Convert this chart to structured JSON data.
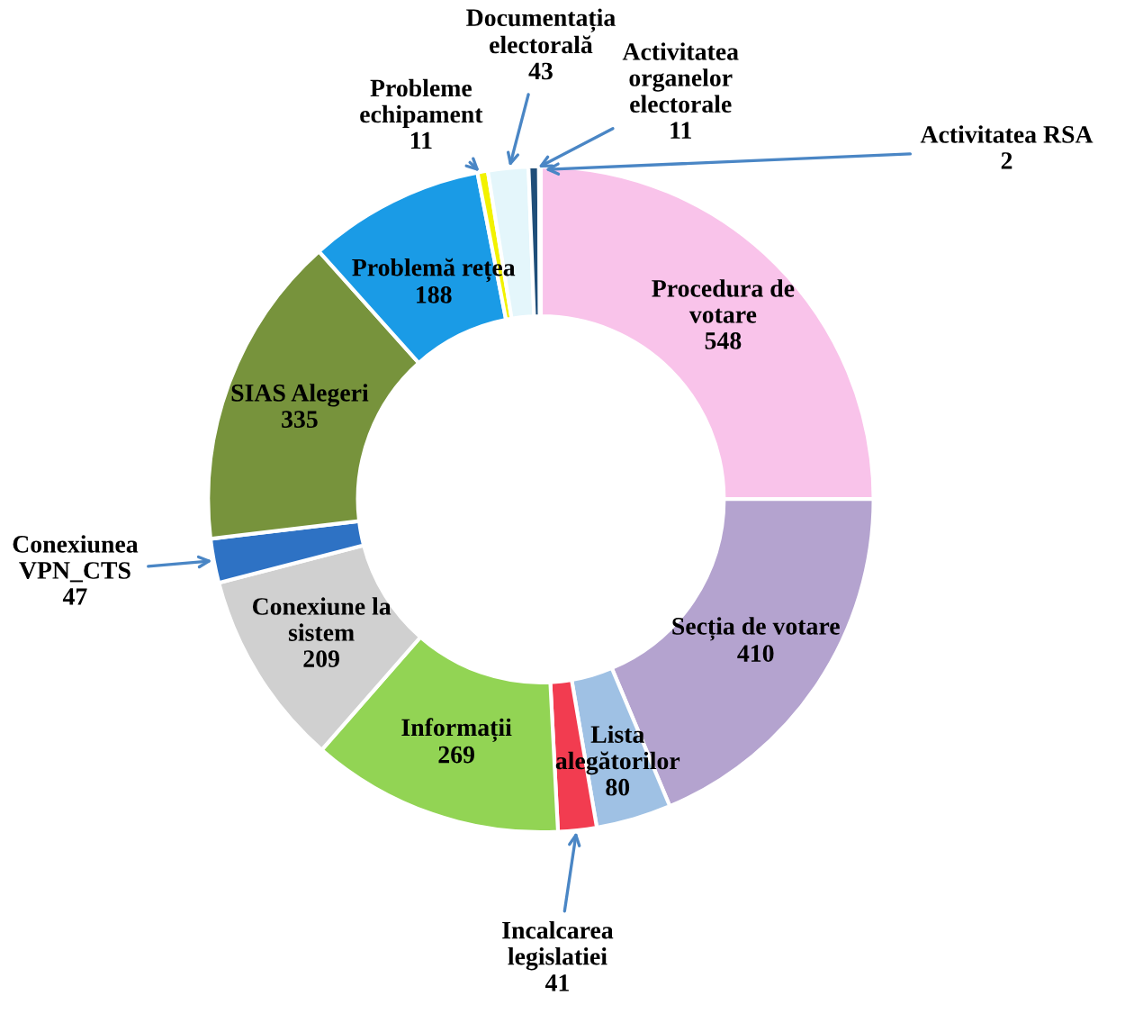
{
  "chart_data": {
    "type": "donut",
    "categories": [
      "Procedura de\nvotare",
      "Secția de votare",
      "Lista\nalegătorilor",
      "Incalcarea\nlegislatiei",
      "Informații",
      "Conexiune la\nsistem",
      "Conexiunea\nVPN_CTS",
      "SIAS Alegeri",
      "Problemă rețea",
      "Probleme\nechipament",
      "Documentația\nelectorală",
      "Activitatea\norganelor\nelectorale",
      "Activitatea RSA"
    ],
    "values": [
      548,
      410,
      80,
      41,
      269,
      209,
      47,
      335,
      188,
      11,
      43,
      11,
      2
    ],
    "colors": [
      "#f9c3ea",
      "#b4a3cf",
      "#9fc1e4",
      "#f23c50",
      "#92d454",
      "#d0d0d0",
      "#2e72c4",
      "#77933c",
      "#1a9be6",
      "#f2f200",
      "#e4f6fb",
      "#1f4e79",
      "#17375e"
    ],
    "data_labels": true,
    "legend": false
  }
}
